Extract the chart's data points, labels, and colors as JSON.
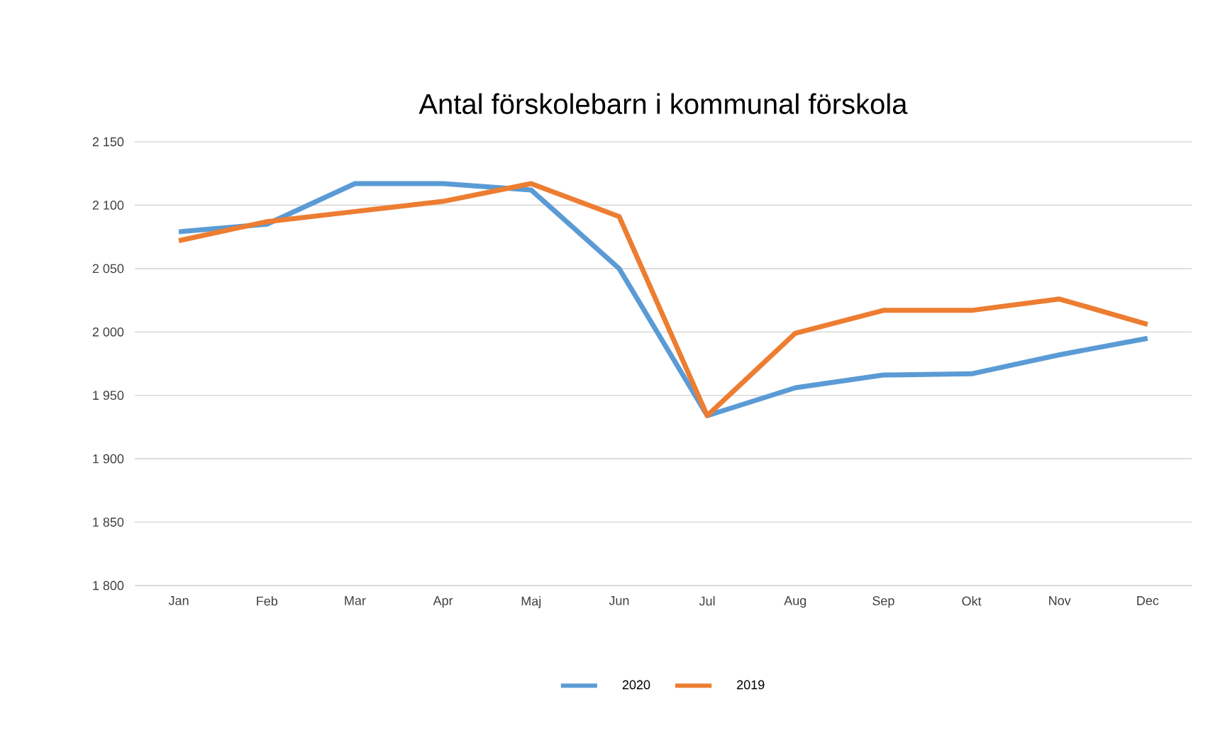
{
  "chart_data": {
    "type": "line",
    "title": "Antal förskolebarn i kommunal förskola",
    "categories": [
      "Jan",
      "Feb",
      "Mar",
      "Apr",
      "Maj",
      "Jun",
      "Jul",
      "Aug",
      "Sep",
      "Okt",
      "Nov",
      "Dec"
    ],
    "series": [
      {
        "name": "2020",
        "color": "#5b9bd5",
        "values": [
          2079,
          2085,
          2117,
          2117,
          2112,
          2050,
          1934,
          1956,
          1966,
          1967,
          1982,
          1995
        ]
      },
      {
        "name": "2019",
        "color": "#ed7d31",
        "values": [
          2072,
          2087,
          2095,
          2103,
          2117,
          2091,
          1934,
          1999,
          2017,
          2017,
          2026,
          2006
        ]
      }
    ],
    "ylim": [
      1800,
      2150
    ],
    "yticks": [
      {
        "value": 1800,
        "label": "1 800"
      },
      {
        "value": 1850,
        "label": "1 850"
      },
      {
        "value": 1900,
        "label": "1 900"
      },
      {
        "value": 1950,
        "label": "1 950"
      },
      {
        "value": 2000,
        "label": "2 000"
      },
      {
        "value": 2050,
        "label": "2 050"
      },
      {
        "value": 2100,
        "label": "2 100"
      },
      {
        "value": 2150,
        "label": "2 150"
      }
    ],
    "grid": "y",
    "legend": "bottom",
    "marker": "none",
    "line_style": "solid"
  }
}
